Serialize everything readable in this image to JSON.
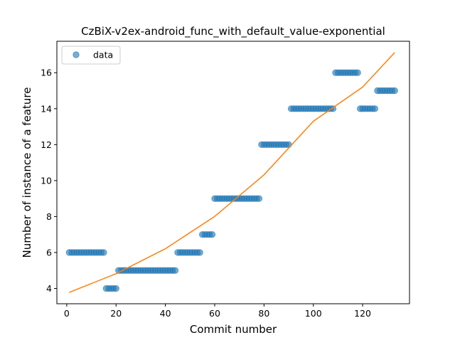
{
  "chart_data": {
    "type": "scatter",
    "title": "CzBiX-v2ex-android_func_with_default_value-exponential",
    "xlabel": "Commit number",
    "ylabel": "Number of instance of a feature",
    "xlim": [
      -4,
      139
    ],
    "ylim": [
      3.15,
      17.75
    ],
    "x_ticks": [
      0,
      20,
      40,
      60,
      80,
      100,
      120
    ],
    "y_ticks": [
      4,
      6,
      8,
      10,
      12,
      14,
      16
    ],
    "grid": false,
    "legend": {
      "placement": "top-left",
      "entries": [
        "data"
      ]
    },
    "colors": {
      "data": "#1f77b4",
      "fit": "#ff7f0e"
    },
    "series": [
      {
        "name": "data",
        "kind": "scatter",
        "x": [
          1,
          2,
          3,
          4,
          5,
          6,
          7,
          8,
          9,
          10,
          11,
          12,
          13,
          14,
          15,
          16,
          17,
          18,
          19,
          20,
          21,
          22,
          23,
          24,
          25,
          26,
          27,
          28,
          29,
          30,
          31,
          32,
          33,
          34,
          35,
          36,
          37,
          38,
          39,
          40,
          41,
          42,
          43,
          44,
          45,
          46,
          47,
          48,
          49,
          50,
          51,
          52,
          53,
          54,
          55,
          56,
          57,
          58,
          59,
          60,
          61,
          62,
          63,
          64,
          65,
          66,
          67,
          68,
          69,
          70,
          71,
          72,
          73,
          74,
          75,
          76,
          77,
          78,
          79,
          80,
          81,
          82,
          83,
          84,
          85,
          86,
          87,
          88,
          89,
          90,
          91,
          92,
          93,
          94,
          95,
          96,
          97,
          98,
          99,
          100,
          101,
          102,
          103,
          104,
          105,
          106,
          107,
          108,
          109,
          110,
          111,
          112,
          113,
          114,
          115,
          116,
          117,
          118,
          119,
          120,
          121,
          122,
          123,
          124,
          125,
          126,
          127,
          128,
          129,
          130,
          131,
          132,
          133
        ],
        "y": [
          6,
          6,
          6,
          6,
          6,
          6,
          6,
          6,
          6,
          6,
          6,
          6,
          6,
          6,
          6,
          4,
          4,
          4,
          4,
          4,
          5,
          5,
          5,
          5,
          5,
          5,
          5,
          5,
          5,
          5,
          5,
          5,
          5,
          5,
          5,
          5,
          5,
          5,
          5,
          5,
          5,
          5,
          5,
          5,
          6,
          6,
          6,
          6,
          6,
          6,
          6,
          6,
          6,
          6,
          7,
          7,
          7,
          7,
          7,
          9,
          9,
          9,
          9,
          9,
          9,
          9,
          9,
          9,
          9,
          9,
          9,
          9,
          9,
          9,
          9,
          9,
          9,
          9,
          12,
          12,
          12,
          12,
          12,
          12,
          12,
          12,
          12,
          12,
          12,
          12,
          14,
          14,
          14,
          14,
          14,
          14,
          14,
          14,
          14,
          14,
          14,
          14,
          14,
          14,
          14,
          14,
          14,
          14,
          16,
          16,
          16,
          16,
          16,
          16,
          16,
          16,
          16,
          16,
          14,
          14,
          14,
          14,
          14,
          14,
          14,
          15,
          15,
          15,
          15,
          15,
          15,
          15,
          15
        ]
      },
      {
        "kind": "line",
        "fit": "exponential",
        "x": [
          1,
          20,
          40,
          60,
          80,
          100,
          120,
          133
        ],
        "y": [
          3.78,
          4.82,
          6.21,
          8.01,
          10.32,
          13.3,
          15.2,
          17.12
        ]
      }
    ]
  }
}
